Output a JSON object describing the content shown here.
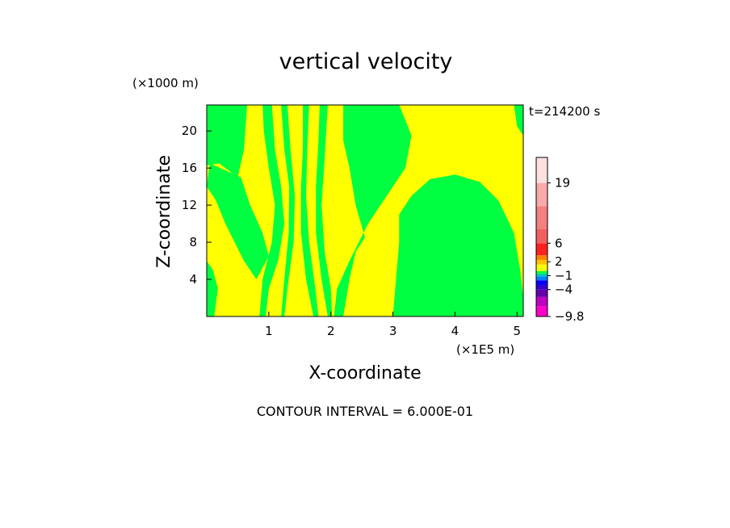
{
  "chart_data": {
    "type": "heatmap",
    "title": "vertical velocity",
    "xlabel": "X-coordinate",
    "ylabel": "Z-coordinate",
    "x_unit": "(×1E5 m)",
    "y_unit": "(×1000 m)",
    "time_label": "t=214200 s",
    "contour_interval": "CONTOUR INTERVAL = 6.000E-01",
    "xlim": [
      0,
      5.1
    ],
    "ylim": [
      0,
      22.8
    ],
    "x_ticks": [
      "1",
      "2",
      "3",
      "4",
      "5"
    ],
    "x_tick_values": [
      1,
      2,
      3,
      4,
      5
    ],
    "y_ticks": [
      "4",
      "8",
      "12",
      "16",
      "20"
    ],
    "y_tick_values": [
      4,
      8,
      12,
      16,
      20
    ],
    "field_regions": [
      {
        "name": "upper-left-green",
        "color": "#00ff40",
        "points": [
          [
            0,
            22.8
          ],
          [
            0.65,
            22.8
          ],
          [
            0.6,
            18
          ],
          [
            0.5,
            15
          ],
          [
            0.2,
            16.5
          ],
          [
            0,
            16.3
          ]
        ]
      },
      {
        "name": "left-green-tongue",
        "color": "#00ff40",
        "points": [
          [
            0.05,
            16.5
          ],
          [
            0.55,
            15
          ],
          [
            0.7,
            12
          ],
          [
            0.9,
            9
          ],
          [
            1.0,
            6.5
          ],
          [
            0.8,
            4
          ],
          [
            0.6,
            6
          ],
          [
            0.45,
            8
          ],
          [
            0.3,
            10
          ],
          [
            0.15,
            12.5
          ],
          [
            0,
            14
          ]
        ]
      },
      {
        "name": "lower-left-green",
        "color": "#00ff40",
        "points": [
          [
            0,
            6
          ],
          [
            0.1,
            5
          ],
          [
            0.18,
            3
          ],
          [
            0.12,
            0
          ],
          [
            0,
            0
          ]
        ]
      },
      {
        "name": "middle-green-band-1",
        "color": "#00ff40",
        "points": [
          [
            0.9,
            22.8
          ],
          [
            1.05,
            22.8
          ],
          [
            1.1,
            18
          ],
          [
            1.2,
            14
          ],
          [
            1.25,
            10
          ],
          [
            1.15,
            6
          ],
          [
            1.0,
            3
          ],
          [
            0.95,
            0
          ],
          [
            0.85,
            0
          ],
          [
            0.9,
            4
          ],
          [
            1.05,
            8
          ],
          [
            1.1,
            12
          ],
          [
            1.0,
            16
          ],
          [
            0.92,
            20
          ]
        ]
      },
      {
        "name": "middle-green-band-2",
        "color": "#00ff40",
        "points": [
          [
            1.2,
            22.8
          ],
          [
            1.3,
            22.8
          ],
          [
            1.35,
            18
          ],
          [
            1.42,
            13
          ],
          [
            1.4,
            8
          ],
          [
            1.3,
            3
          ],
          [
            1.25,
            0
          ],
          [
            1.2,
            0
          ],
          [
            1.25,
            4
          ],
          [
            1.32,
            9
          ],
          [
            1.33,
            14
          ],
          [
            1.25,
            18
          ]
        ]
      },
      {
        "name": "middle-green-band-3",
        "color": "#00ff40",
        "points": [
          [
            1.55,
            22.8
          ],
          [
            1.65,
            22.8
          ],
          [
            1.62,
            18
          ],
          [
            1.6,
            13
          ],
          [
            1.65,
            8
          ],
          [
            1.75,
            3
          ],
          [
            1.8,
            0
          ],
          [
            1.72,
            0
          ],
          [
            1.6,
            4
          ],
          [
            1.52,
            9
          ],
          [
            1.52,
            14
          ],
          [
            1.55,
            18
          ]
        ]
      },
      {
        "name": "middle-green-band-4",
        "color": "#00ff40",
        "points": [
          [
            1.82,
            22.8
          ],
          [
            1.95,
            22.8
          ],
          [
            1.9,
            17
          ],
          [
            1.85,
            12
          ],
          [
            1.9,
            7
          ],
          [
            2.0,
            3
          ],
          [
            2.02,
            0
          ],
          [
            1.95,
            0
          ],
          [
            1.85,
            4
          ],
          [
            1.76,
            9
          ],
          [
            1.76,
            14
          ],
          [
            1.8,
            19
          ]
        ]
      },
      {
        "name": "right-middle-green",
        "color": "#00ff40",
        "points": [
          [
            2.2,
            22.8
          ],
          [
            3.1,
            22.8
          ],
          [
            3.3,
            19.5
          ],
          [
            3.2,
            16
          ],
          [
            2.9,
            13
          ],
          [
            2.6,
            10
          ],
          [
            2.3,
            6
          ],
          [
            2.1,
            3
          ],
          [
            2.05,
            0
          ],
          [
            2.2,
            0
          ],
          [
            2.3,
            4
          ],
          [
            2.4,
            7
          ],
          [
            2.55,
            8.5
          ],
          [
            2.4,
            12
          ],
          [
            2.3,
            16
          ],
          [
            2.2,
            19
          ]
        ]
      },
      {
        "name": "lower-right-green-dome",
        "color": "#00ff40",
        "points": [
          [
            3.0,
            0
          ],
          [
            3.05,
            4
          ],
          [
            3.1,
            8
          ],
          [
            3.1,
            11
          ],
          [
            3.3,
            13
          ],
          [
            3.6,
            14.8
          ],
          [
            4.0,
            15.3
          ],
          [
            4.4,
            14.5
          ],
          [
            4.7,
            12.5
          ],
          [
            4.95,
            9
          ],
          [
            5.05,
            5
          ],
          [
            5.1,
            2
          ],
          [
            5.1,
            0
          ]
        ]
      },
      {
        "name": "upper-right-green",
        "color": "#00ff40",
        "points": [
          [
            4.95,
            22.8
          ],
          [
            5.1,
            22.8
          ],
          [
            5.1,
            19.5
          ],
          [
            5.0,
            20.5
          ]
        ]
      }
    ],
    "colorbar": {
      "labels": [
        "19",
        "6",
        "2",
        "−1",
        "−4",
        "−9.8"
      ],
      "label_values": [
        19,
        6,
        2,
        -1,
        -4,
        -9.8
      ],
      "vmin": -9.8,
      "vmax": 24.5,
      "levels": [
        {
          "from": -9.8,
          "to": -7.6,
          "color": "#ff00c8"
        },
        {
          "from": -7.6,
          "to": -5.6,
          "color": "#c000c0"
        },
        {
          "from": -5.6,
          "to": -4.0,
          "color": "#6600aa"
        },
        {
          "from": -4.0,
          "to": -3.0,
          "color": "#3300cc"
        },
        {
          "from": -3.0,
          "to": -2.0,
          "color": "#0000ff"
        },
        {
          "from": -2.0,
          "to": -1.2,
          "color": "#0080ff"
        },
        {
          "from": -1.2,
          "to": -0.6,
          "color": "#00c0c0"
        },
        {
          "from": -0.6,
          "to": 0.0,
          "color": "#00ff40"
        },
        {
          "from": 0.0,
          "to": 0.6,
          "color": "#e8ff00"
        },
        {
          "from": 0.6,
          "to": 1.4,
          "color": "#ffff00"
        },
        {
          "from": 1.4,
          "to": 2.4,
          "color": "#ffc000"
        },
        {
          "from": 2.4,
          "to": 3.4,
          "color": "#ff8000"
        },
        {
          "from": 3.4,
          "to": 6.0,
          "color": "#ff2020"
        },
        {
          "from": 6.0,
          "to": 9.0,
          "color": "#f06060"
        },
        {
          "from": 9.0,
          "to": 14.0,
          "color": "#f48080"
        },
        {
          "from": 14.0,
          "to": 19.0,
          "color": "#f8aaaa"
        },
        {
          "from": 19.0,
          "to": 24.5,
          "color": "#fde0e0"
        }
      ]
    },
    "background_color": "#ffff00"
  }
}
